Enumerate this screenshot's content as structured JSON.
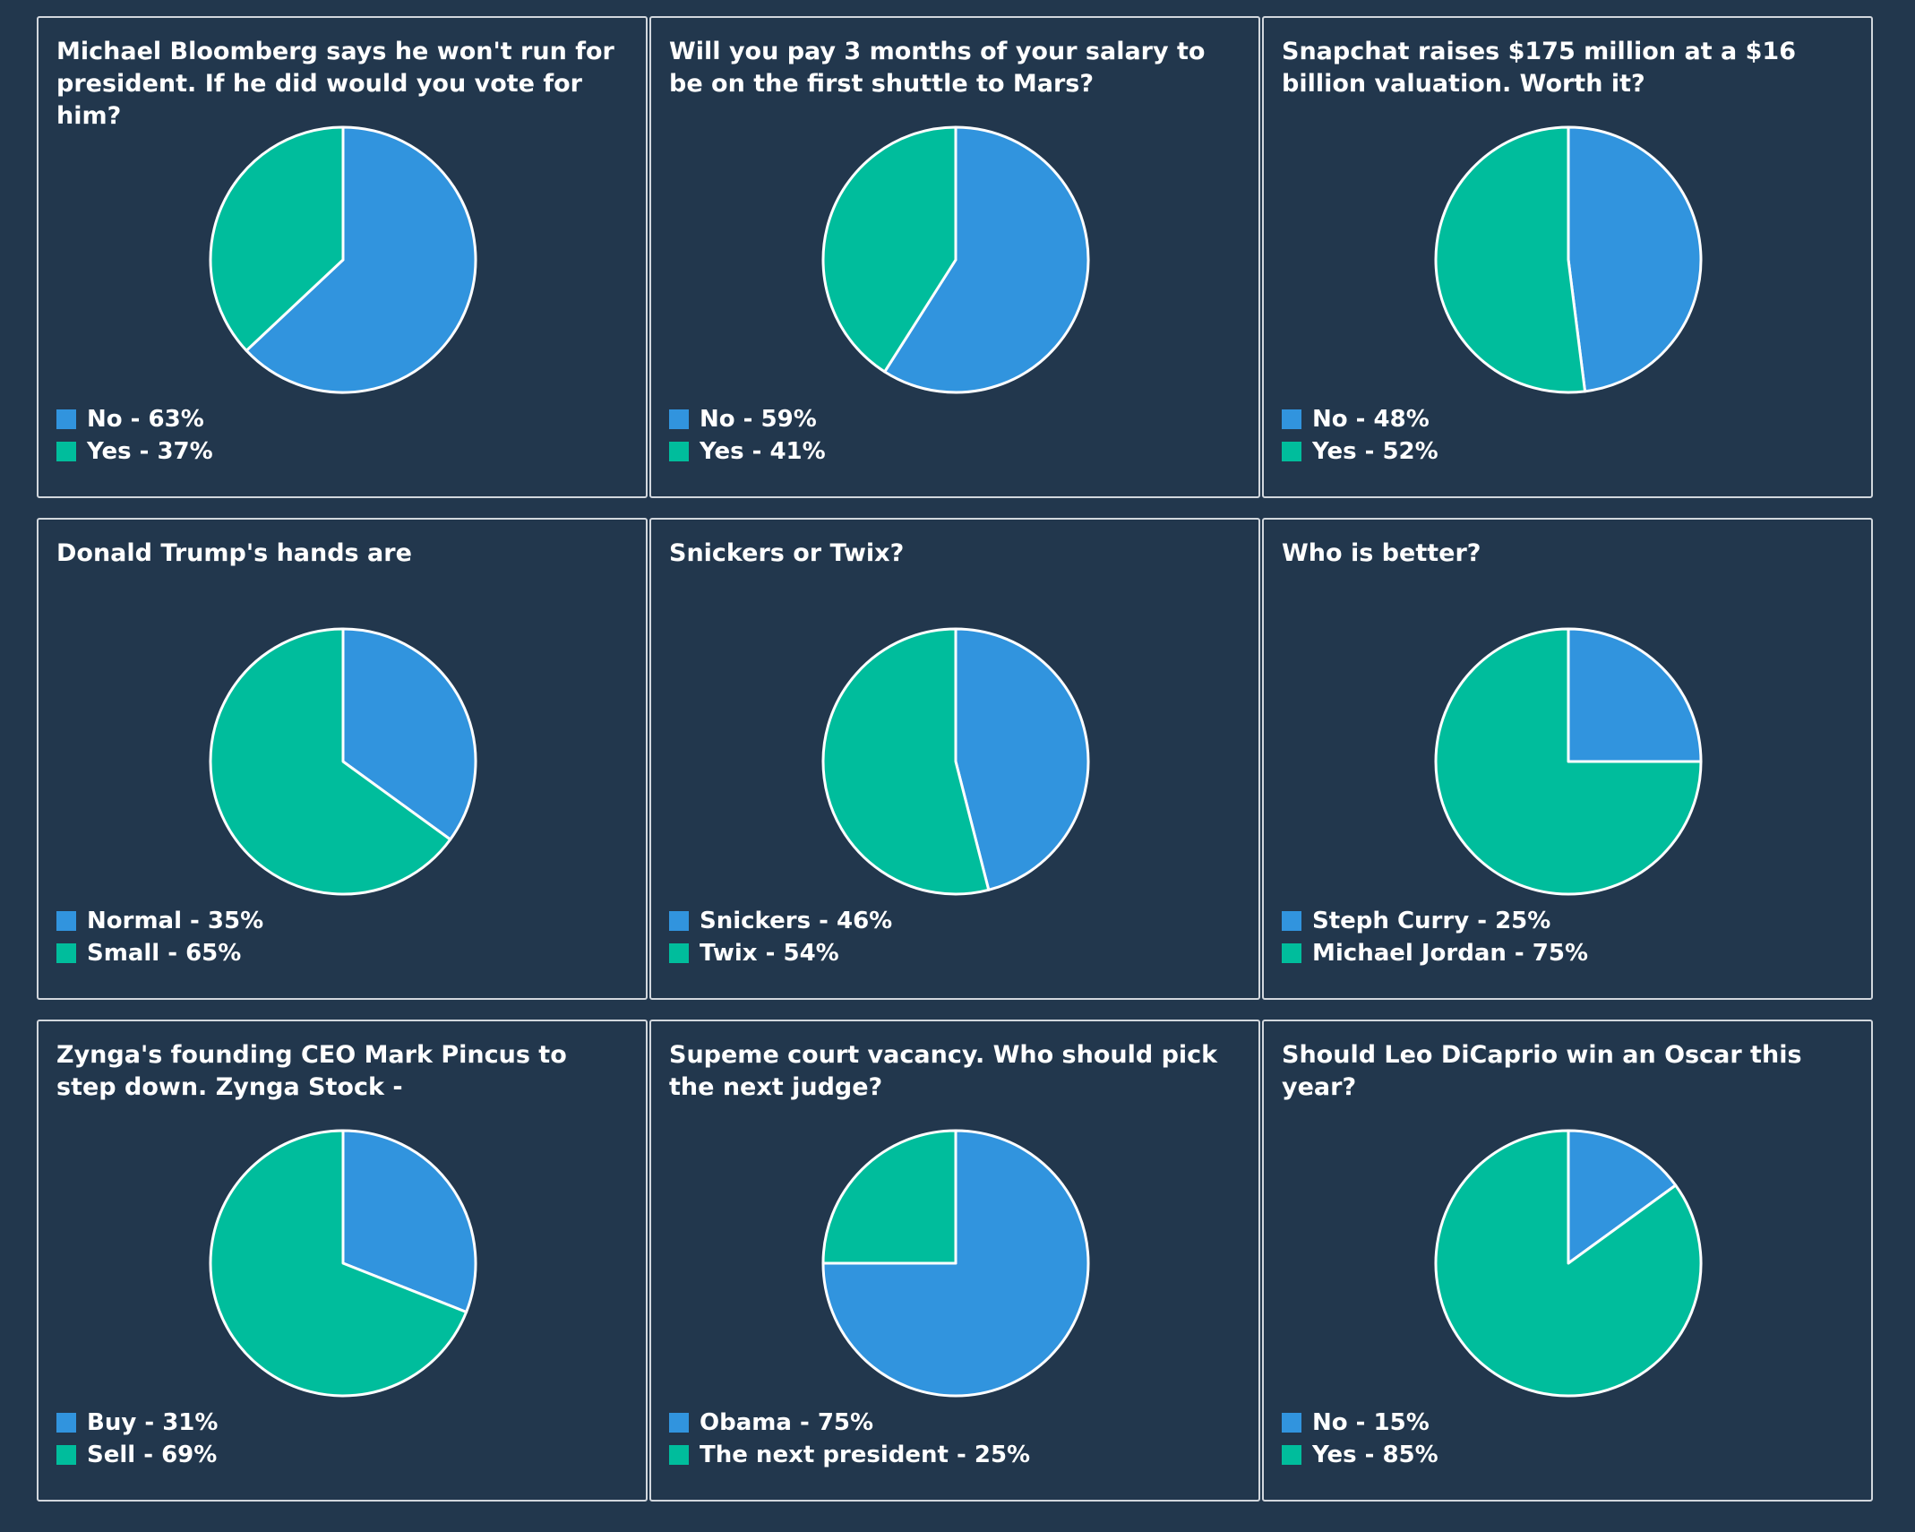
{
  "colors": {
    "blue": "#3194de",
    "green": "#00bd9c",
    "background": "#22374d",
    "border": "#d2d7dd",
    "slice_stroke": "#ffffff"
  },
  "legend_separator": " - ",
  "chart_data": [
    {
      "type": "pie",
      "title": "Michael Bloomberg says he won't run for president. If he did would you vote for him?",
      "slices": [
        {
          "label": "No",
          "value": 63,
          "display": "63%",
          "color": "#3194de"
        },
        {
          "label": "Yes",
          "value": 37,
          "display": "37%",
          "color": "#00bd9c"
        }
      ]
    },
    {
      "type": "pie",
      "title": "Will you pay 3 months of your salary to be on the first shuttle to Mars?",
      "slices": [
        {
          "label": "No",
          "value": 59,
          "display": "59%",
          "color": "#3194de"
        },
        {
          "label": "Yes",
          "value": 41,
          "display": "41%",
          "color": "#00bd9c"
        }
      ]
    },
    {
      "type": "pie",
      "title": "Snapchat raises $175 million at a $16 billion valuation. Worth it?",
      "slices": [
        {
          "label": "No",
          "value": 48,
          "display": "48%",
          "color": "#3194de"
        },
        {
          "label": "Yes",
          "value": 52,
          "display": "52%",
          "color": "#00bd9c"
        }
      ]
    },
    {
      "type": "pie",
      "title": "Donald Trump's hands are",
      "slices": [
        {
          "label": "Normal",
          "value": 35,
          "display": "35%",
          "color": "#3194de"
        },
        {
          "label": "Small",
          "value": 65,
          "display": "65%",
          "color": "#00bd9c"
        }
      ]
    },
    {
      "type": "pie",
      "title": "Snickers or Twix?",
      "slices": [
        {
          "label": "Snickers",
          "value": 46,
          "display": "46%",
          "color": "#3194de"
        },
        {
          "label": "Twix",
          "value": 54,
          "display": "54%",
          "color": "#00bd9c"
        }
      ]
    },
    {
      "type": "pie",
      "title": "Who is better?",
      "slices": [
        {
          "label": "Steph Curry",
          "value": 25,
          "display": "25%",
          "color": "#3194de"
        },
        {
          "label": "Michael Jordan",
          "value": 75,
          "display": "75%",
          "color": "#00bd9c"
        }
      ]
    },
    {
      "type": "pie",
      "title": "Zynga's founding CEO Mark Pincus to step down. Zynga Stock -",
      "slices": [
        {
          "label": "Buy",
          "value": 31,
          "display": "31%",
          "color": "#3194de"
        },
        {
          "label": "Sell",
          "value": 69,
          "display": "69%",
          "color": "#00bd9c"
        }
      ]
    },
    {
      "type": "pie",
      "title": "Supeme court vacancy. Who should pick the next judge?",
      "slices": [
        {
          "label": "Obama",
          "value": 75,
          "display": "75%",
          "color": "#3194de"
        },
        {
          "label": "The next president",
          "value": 25,
          "display": "25%",
          "color": "#00bd9c"
        }
      ]
    },
    {
      "type": "pie",
      "title": "Should Leo DiCaprio win an Oscar this year?",
      "slices": [
        {
          "label": "No",
          "value": 15,
          "display": "15%",
          "color": "#3194de"
        },
        {
          "label": "Yes",
          "value": 85,
          "display": "85%",
          "color": "#00bd9c"
        }
      ]
    }
  ]
}
